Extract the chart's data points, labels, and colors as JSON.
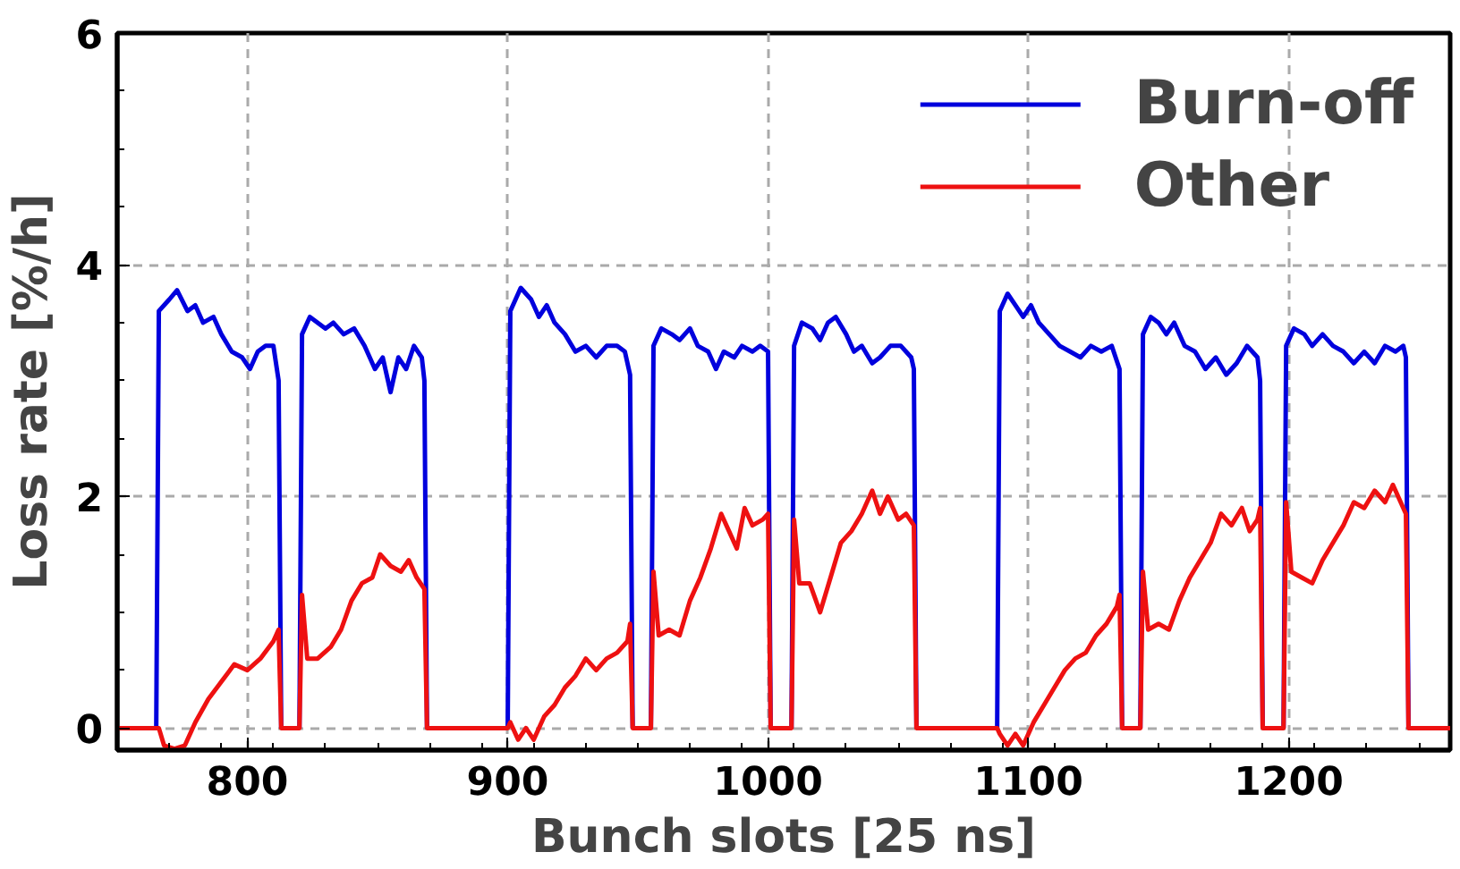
{
  "chart_data": {
    "type": "line",
    "xlabel": "Bunch slots [25 ns]",
    "ylabel": "Loss rate [%/h]",
    "xlim": [
      750,
      1262
    ],
    "ylim": [
      -0.19,
      6
    ],
    "xticks": [
      800,
      900,
      1000,
      1100,
      1200
    ],
    "yticks": [
      0,
      2,
      4,
      6
    ],
    "grid": true,
    "legend": "top right",
    "line_style": "solid",
    "marker": "none",
    "series": [
      {
        "name": "Burn-off",
        "color": "#0000dd",
        "x": [
          765,
          766,
          770,
          773,
          777,
          780,
          783,
          787,
          790,
          794,
          798,
          801,
          804,
          807,
          810,
          812,
          813,
          816,
          820,
          821,
          824,
          827,
          830,
          833,
          837,
          841,
          845,
          849,
          852,
          855,
          858,
          861,
          864,
          867,
          868,
          869,
          885,
          900,
          901,
          905,
          909,
          912,
          915,
          918,
          922,
          926,
          930,
          934,
          938,
          942,
          945,
          947,
          948,
          951,
          955,
          956,
          959,
          963,
          966,
          970,
          973,
          977,
          980,
          983,
          987,
          990,
          994,
          997,
          1000,
          1001,
          1005,
          1009,
          1010,
          1013,
          1017,
          1020,
          1023,
          1026,
          1030,
          1033,
          1036,
          1040,
          1043,
          1047,
          1051,
          1055,
          1056,
          1057,
          1070,
          1088,
          1089,
          1092,
          1095,
          1098,
          1101,
          1104,
          1108,
          1112,
          1116,
          1120,
          1124,
          1128,
          1132,
          1135,
          1136,
          1140,
          1143,
          1144,
          1147,
          1150,
          1153,
          1156,
          1160,
          1164,
          1168,
          1172,
          1176,
          1180,
          1184,
          1188,
          1189,
          1190,
          1194,
          1198,
          1199,
          1202,
          1206,
          1209,
          1213,
          1217,
          1221,
          1225,
          1229,
          1233,
          1237,
          1241,
          1244,
          1245,
          1246
        ],
        "values": [
          0,
          3.6,
          3.7,
          3.78,
          3.6,
          3.65,
          3.5,
          3.55,
          3.4,
          3.25,
          3.2,
          3.1,
          3.25,
          3.3,
          3.3,
          3.0,
          0,
          null,
          0,
          3.4,
          3.55,
          3.5,
          3.45,
          3.5,
          3.4,
          3.45,
          3.3,
          3.1,
          3.2,
          2.9,
          3.2,
          3.1,
          3.3,
          3.2,
          3.0,
          0,
          null,
          0,
          3.6,
          3.8,
          3.7,
          3.55,
          3.65,
          3.5,
          3.4,
          3.25,
          3.3,
          3.2,
          3.3,
          3.3,
          3.25,
          3.05,
          0,
          null,
          0,
          3.3,
          3.45,
          3.4,
          3.35,
          3.45,
          3.3,
          3.25,
          3.1,
          3.25,
          3.2,
          3.3,
          3.25,
          3.3,
          3.25,
          0,
          null,
          0,
          3.3,
          3.5,
          3.45,
          3.35,
          3.5,
          3.55,
          3.4,
          3.25,
          3.3,
          3.15,
          3.2,
          3.3,
          3.3,
          3.2,
          3.1,
          0,
          null,
          0,
          3.6,
          3.75,
          3.65,
          3.55,
          3.65,
          3.5,
          3.4,
          3.3,
          3.25,
          3.2,
          3.3,
          3.25,
          3.3,
          3.1,
          0,
          null,
          0,
          3.4,
          3.55,
          3.5,
          3.4,
          3.5,
          3.3,
          3.25,
          3.1,
          3.2,
          3.05,
          3.15,
          3.3,
          3.2,
          3.0,
          0,
          null,
          0,
          3.3,
          3.45,
          3.4,
          3.3,
          3.4,
          3.3,
          3.25,
          3.15,
          3.25,
          3.15,
          3.3,
          3.25,
          3.3,
          3.2,
          0
        ]
      },
      {
        "name": "Other",
        "color": "#ee1111",
        "x": [
          750,
          765,
          766,
          768,
          772,
          776,
          780,
          785,
          790,
          795,
          800,
          805,
          810,
          812,
          813,
          820,
          821,
          823,
          827,
          832,
          836,
          840,
          844,
          848,
          851,
          855,
          859,
          862,
          865,
          868,
          869,
          900,
          901,
          904,
          907,
          910,
          914,
          918,
          922,
          926,
          930,
          934,
          938,
          942,
          946,
          947,
          948,
          955,
          956,
          958,
          962,
          966,
          970,
          974,
          978,
          982,
          985,
          988,
          991,
          994,
          998,
          1000,
          1001,
          1009,
          1010,
          1012,
          1016,
          1020,
          1024,
          1028,
          1032,
          1036,
          1040,
          1043,
          1046,
          1050,
          1053,
          1056,
          1057,
          1088,
          1089,
          1092,
          1095,
          1098,
          1102,
          1106,
          1110,
          1114,
          1118,
          1122,
          1126,
          1130,
          1134,
          1135,
          1136,
          1143,
          1144,
          1146,
          1150,
          1154,
          1158,
          1162,
          1166,
          1170,
          1174,
          1178,
          1182,
          1185,
          1188,
          1189,
          1190,
          1198,
          1199,
          1201,
          1205,
          1209,
          1213,
          1217,
          1221,
          1225,
          1229,
          1233,
          1237,
          1240,
          1243,
          1245,
          1246,
          1262
        ],
        "values": [
          0,
          0,
          0,
          -0.15,
          -0.18,
          -0.15,
          0.05,
          0.25,
          0.4,
          0.55,
          0.5,
          0.6,
          0.75,
          0.85,
          0,
          0,
          1.15,
          0.6,
          0.6,
          0.7,
          0.85,
          1.1,
          1.25,
          1.3,
          1.5,
          1.4,
          1.35,
          1.45,
          1.3,
          1.2,
          0,
          0,
          0.05,
          -0.1,
          0.0,
          -0.1,
          0.1,
          0.2,
          0.35,
          0.45,
          0.6,
          0.5,
          0.6,
          0.65,
          0.75,
          0.9,
          0,
          0,
          1.35,
          0.8,
          0.85,
          0.8,
          1.1,
          1.3,
          1.55,
          1.85,
          1.7,
          1.55,
          1.9,
          1.75,
          1.8,
          1.85,
          0,
          0,
          1.8,
          1.25,
          1.25,
          1.0,
          1.3,
          1.6,
          1.7,
          1.85,
          2.05,
          1.85,
          2.0,
          1.8,
          1.85,
          1.75,
          0,
          0,
          -0.05,
          -0.15,
          -0.05,
          -0.15,
          0.05,
          0.2,
          0.35,
          0.5,
          0.6,
          0.65,
          0.8,
          0.9,
          1.05,
          1.15,
          0,
          0,
          1.35,
          0.85,
          0.9,
          0.85,
          1.1,
          1.3,
          1.45,
          1.6,
          1.85,
          1.75,
          1.9,
          1.7,
          1.8,
          1.9,
          0,
          0,
          1.95,
          1.35,
          1.3,
          1.25,
          1.45,
          1.6,
          1.75,
          1.95,
          1.9,
          2.05,
          1.95,
          2.1,
          1.95,
          1.85,
          0,
          0
        ]
      }
    ]
  }
}
